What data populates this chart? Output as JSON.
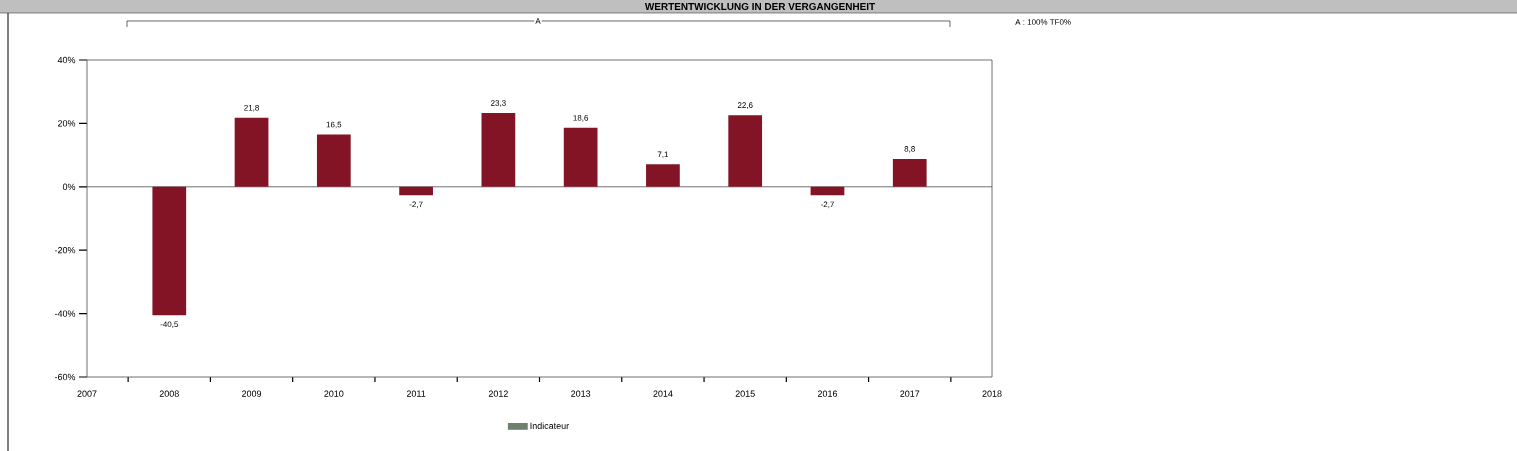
{
  "chart_data": {
    "type": "bar",
    "title": "WERTENTWICKLUNG IN DER VERGANGENHEIT",
    "annotations": [
      "A",
      "A : 100% TF0%"
    ],
    "x": [
      2008,
      2009,
      2010,
      2011,
      2012,
      2013,
      2014,
      2015,
      2016,
      2017
    ],
    "series": [
      {
        "color": "#821426",
        "values": [
          -40.5,
          21.8,
          16.5,
          -2.7,
          23.3,
          18.6,
          7.1,
          22.6,
          -2.7,
          8.8
        ],
        "value_labels": [
          "-40,5",
          "21,8",
          "16,5",
          "-2,7",
          "23,3",
          "18,6",
          "7,1",
          "22,6",
          "-2,7",
          "8,8"
        ]
      },
      {
        "name": "Indicateur",
        "color": "#6e8070",
        "values": [
          null,
          null,
          null,
          null,
          null,
          null,
          null,
          null,
          null,
          null
        ]
      }
    ],
    "xlim": [
      2007,
      2018
    ],
    "xticks": [
      2007,
      2008,
      2009,
      2010,
      2011,
      2012,
      2013,
      2014,
      2015,
      2016,
      2017,
      2018
    ],
    "ylim": [
      -60,
      40
    ],
    "yticks": [
      {
        "value": -60,
        "label": "-60%"
      },
      {
        "value": -40,
        "label": "-40%"
      },
      {
        "value": -20,
        "label": "-20%"
      },
      {
        "value": 0,
        "label": "0%"
      },
      {
        "value": 20,
        "label": "20%"
      },
      {
        "value": 40,
        "label": "40%"
      }
    ],
    "legend": "bottom"
  }
}
